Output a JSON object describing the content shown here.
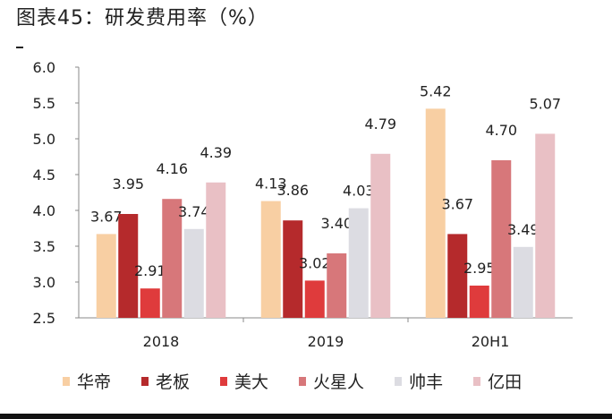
{
  "title": "图表45：研发费用率（%）",
  "chart_data": {
    "type": "bar",
    "categories": [
      "2018",
      "2019",
      "20H1"
    ],
    "series": [
      {
        "name": "华帝",
        "values": [
          3.67,
          4.13,
          5.42
        ],
        "color": "#f8cfa3"
      },
      {
        "name": "老板",
        "values": [
          3.95,
          3.86,
          3.67
        ],
        "color": "#b52a2c"
      },
      {
        "name": "美大",
        "values": [
          2.91,
          3.02,
          2.95
        ],
        "color": "#df3b3c"
      },
      {
        "name": "火星人",
        "values": [
          4.16,
          3.4,
          4.7
        ],
        "color": "#d7777a"
      },
      {
        "name": "帅丰",
        "values": [
          3.74,
          4.03,
          3.49
        ],
        "color": "#dcdce2"
      },
      {
        "name": "亿田",
        "values": [
          4.39,
          4.79,
          5.07
        ],
        "color": "#e9c0c5"
      }
    ],
    "ylim": [
      2.5,
      6.0
    ],
    "yticks": [
      "2.5",
      "3.0",
      "3.5",
      "4.0",
      "4.5",
      "5.0",
      "5.5",
      "6.0"
    ],
    "legend": "bottom",
    "grid": false
  }
}
